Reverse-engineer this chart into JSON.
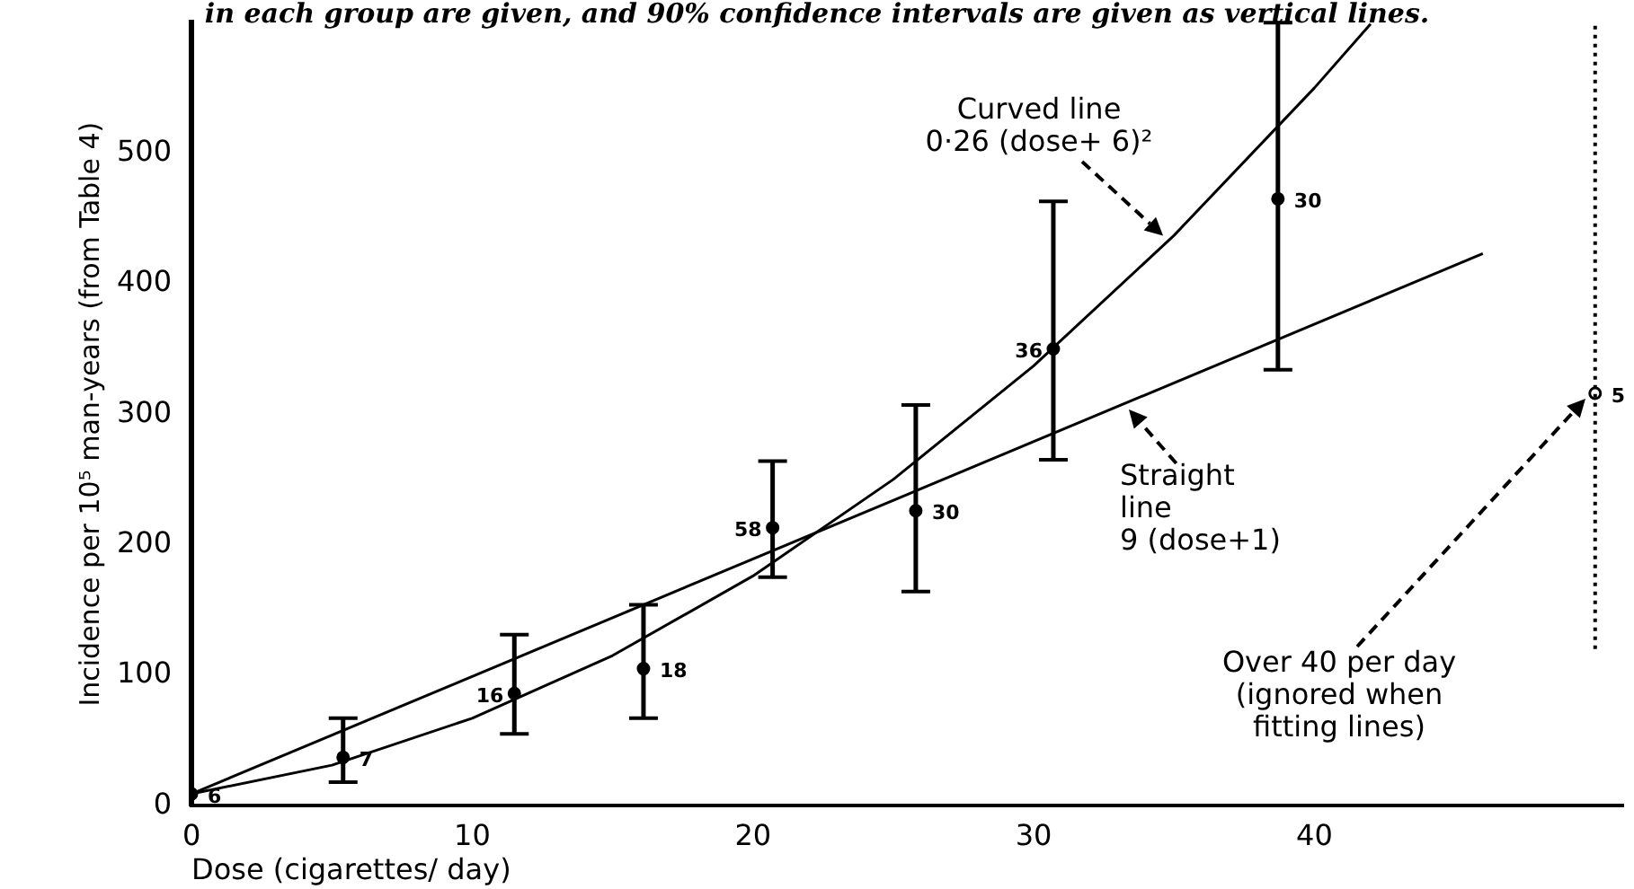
{
  "chart_data": {
    "type": "scatter",
    "xlabel": "Dose (cigarettes/ day)",
    "ylabel": "Incidence per 10⁵ man-years (from Table 4)",
    "annotations": [
      "in each group are given, and 90% confidence intervals are given as vertical lines.",
      {
        "text": "Curved line 0·26 (dose+ 6)²",
        "x": 34.8,
        "y": 433
      },
      {
        "text": "Straight line 9 (dose+1)",
        "x": 33.2,
        "y": 308
      },
      "Over 40 per day (ignored when fitting lines)",
      {
        "text": "6",
        "x": 0,
        "y": 9
      },
      {
        "text": "7",
        "x": 5.4,
        "y": 37
      },
      {
        "text": "16",
        "x": 11.5,
        "y": 86
      },
      {
        "text": "18",
        "x": 16.1,
        "y": 105
      },
      {
        "text": "58",
        "x": 20.7,
        "y": 213
      },
      {
        "text": "30",
        "x": 25.8,
        "y": 226
      },
      {
        "text": "36",
        "x": 30.7,
        "y": 350
      },
      {
        "text": "30",
        "x": 38.7,
        "y": 465
      },
      {
        "text": "5",
        "x": 50,
        "y": 316
      }
    ],
    "series": [
      {
        "color": "#000000",
        "x": [
          0,
          5.4,
          11.5,
          16.1,
          20.7,
          25.8,
          30.7,
          38.7
        ],
        "values": [
          9,
          37,
          86,
          105,
          213,
          226,
          350,
          465
        ],
        "errors": [
          null,
          [
            18,
            67
          ],
          [
            55,
            131
          ],
          [
            67,
            154
          ],
          [
            175,
            264
          ],
          [
            164,
            307
          ],
          [
            265,
            463
          ],
          [
            334,
            600
          ]
        ]
      },
      {
        "color": "#000000",
        "x": [
          50
        ],
        "values": [
          316
        ],
        "errors": [
          [
            120,
            600
          ]
        ],
        "line_style": "dotted"
      },
      {
        "type": "line",
        "marker": "none",
        "color": "#000000",
        "x": [
          0,
          5,
          10,
          15,
          20,
          25,
          30,
          35,
          40,
          42
        ],
        "values": [
          9,
          31,
          67,
          115,
          176,
          250,
          337,
          437,
          550,
          599
        ]
      },
      {
        "type": "line",
        "marker": "none",
        "color": "#000000",
        "x": [
          0,
          46
        ],
        "values": [
          9,
          423
        ]
      }
    ],
    "xlim": [
      0,
      51
    ],
    "xticks": [
      0,
      10,
      20,
      30,
      40
    ],
    "ylim": [
      0,
      600
    ],
    "yticks": [
      0,
      100,
      200,
      300,
      400,
      500
    ],
    "grid": false,
    "legend": false,
    "marker": "circle"
  }
}
